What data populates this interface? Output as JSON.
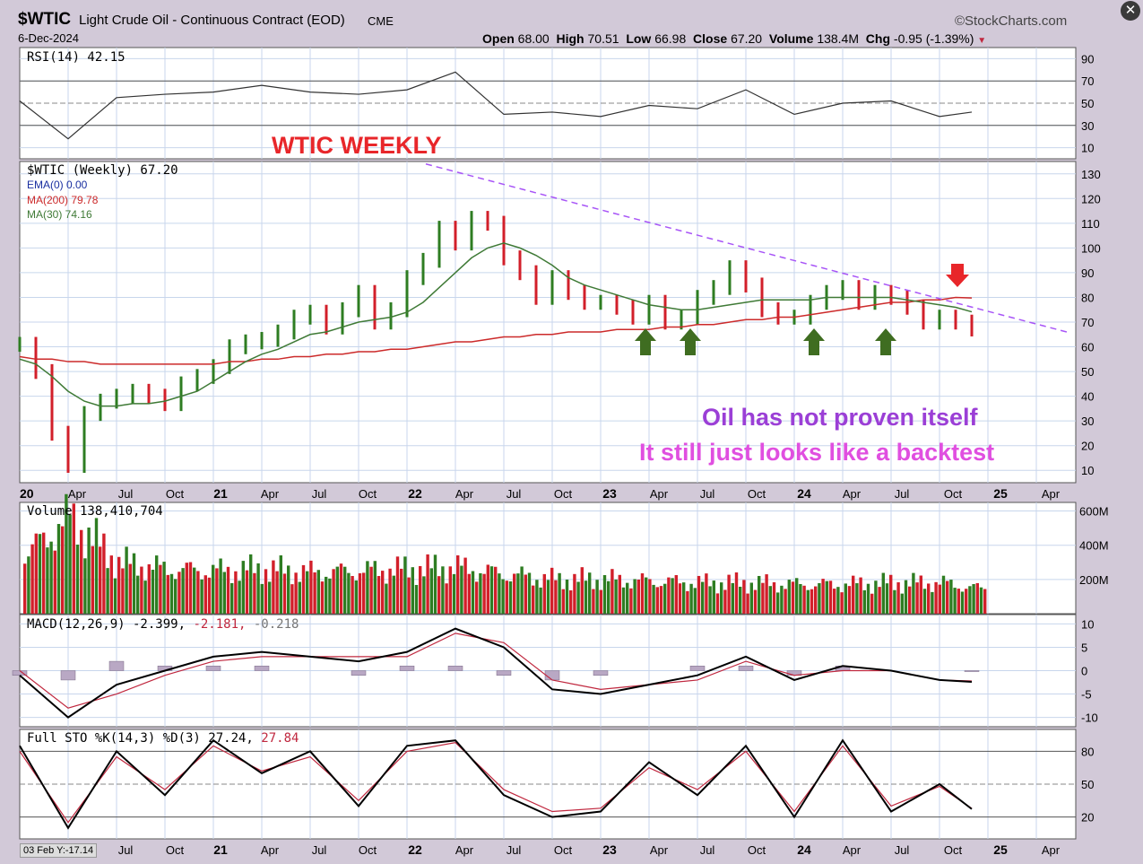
{
  "header": {
    "symbol": "$WTIC",
    "name": "Light Crude Oil - Continuous Contract (EOD)",
    "exchange": "CME",
    "date": "6-Dec-2024",
    "brand": "©StockCharts.com",
    "open_label": "Open",
    "open": "68.00",
    "high_label": "High",
    "high": "70.51",
    "low_label": "Low",
    "low": "66.98",
    "close_label": "Close",
    "close": "67.20",
    "volume_label": "Volume",
    "volume": "138.4M",
    "chg_label": "Chg",
    "chg": "-0.95 (-1.39%)"
  },
  "status_text": "03 Feb Y:-17.14",
  "colors": {
    "up": "#2e7d22",
    "down": "#d21f2a",
    "ma200": "#cc2a2a",
    "ma30": "#3f7a36",
    "trend": "#a855f7",
    "annot_purple": "#9b3fd6",
    "annot_pink": "#e04fe0",
    "title_red": "#e8262a",
    "arrow_green": "#3f6d21",
    "arrow_red": "#e8262a"
  },
  "chart_data": [
    {
      "type": "line",
      "title": "RSI(14) 42.15",
      "yticks": [
        10,
        30,
        50,
        70,
        90
      ],
      "ylim": [
        0,
        100
      ],
      "x": [
        "2020-01",
        "2020-04",
        "2020-07",
        "2020-10",
        "2021-01",
        "2021-04",
        "2021-07",
        "2021-10",
        "2022-01",
        "2022-04",
        "2022-07",
        "2022-10",
        "2023-01",
        "2023-04",
        "2023-07",
        "2023-10",
        "2024-01",
        "2024-04",
        "2024-07",
        "2024-10",
        "2024-12"
      ],
      "series": [
        {
          "name": "RSI(14)",
          "values": [
            52,
            18,
            55,
            58,
            60,
            66,
            60,
            58,
            62,
            78,
            40,
            42,
            38,
            48,
            45,
            62,
            40,
            50,
            52,
            38,
            42
          ]
        }
      ]
    },
    {
      "type": "line",
      "title": "$WTIC (Weekly) 67.20",
      "annotation_title": "WTIC WEEKLY",
      "annotations": [
        "Oil has not proven itself",
        "It still just looks like a backtest"
      ],
      "legend": [
        "EMA(0) 0.00",
        "MA(200) 79.78",
        "MA(30) 74.16"
      ],
      "yticks": [
        10,
        20,
        30,
        40,
        50,
        60,
        70,
        80,
        90,
        100,
        110,
        120,
        130
      ],
      "ylim": [
        5,
        135
      ],
      "xticks": [
        "20",
        "Apr",
        "Jul",
        "Oct",
        "21",
        "Apr",
        "Jul",
        "Oct",
        "22",
        "Apr",
        "Jul",
        "Oct",
        "23",
        "Apr",
        "Jul",
        "Oct",
        "24",
        "Apr",
        "Jul",
        "Oct",
        "25",
        "Apr"
      ],
      "x": [
        "2020-01",
        "2020-02",
        "2020-03",
        "2020-04",
        "2020-05",
        "2020-06",
        "2020-07",
        "2020-08",
        "2020-09",
        "2020-10",
        "2020-11",
        "2020-12",
        "2021-01",
        "2021-02",
        "2021-03",
        "2021-04",
        "2021-05",
        "2021-06",
        "2021-07",
        "2021-08",
        "2021-09",
        "2021-10",
        "2021-11",
        "2021-12",
        "2022-01",
        "2022-02",
        "2022-03",
        "2022-04",
        "2022-05",
        "2022-06",
        "2022-07",
        "2022-08",
        "2022-09",
        "2022-10",
        "2022-11",
        "2022-12",
        "2023-01",
        "2023-02",
        "2023-03",
        "2023-04",
        "2023-05",
        "2023-06",
        "2023-07",
        "2023-08",
        "2023-09",
        "2023-10",
        "2023-11",
        "2023-12",
        "2024-01",
        "2024-02",
        "2024-03",
        "2024-04",
        "2024-05",
        "2024-06",
        "2024-07",
        "2024-08",
        "2024-09",
        "2024-10",
        "2024-11",
        "2024-12"
      ],
      "series": [
        {
          "name": "$WTIC",
          "values": [
            61,
            50,
            25,
            12,
            33,
            38,
            40,
            42,
            40,
            37,
            45,
            48,
            52,
            60,
            62,
            63,
            66,
            72,
            74,
            68,
            75,
            82,
            70,
            75,
            88,
            95,
            108,
            102,
            112,
            110,
            96,
            90,
            80,
            88,
            82,
            78,
            78,
            76,
            72,
            78,
            70,
            72,
            80,
            84,
            92,
            85,
            75,
            72,
            72,
            78,
            82,
            84,
            78,
            82,
            80,
            76,
            70,
            72,
            70,
            67.2
          ]
        },
        {
          "name": "MA(200)",
          "values": [
            56,
            55,
            55,
            54,
            54,
            53,
            53,
            53,
            53,
            53,
            53,
            53,
            53,
            54,
            54,
            55,
            55,
            56,
            56,
            57,
            57,
            58,
            58,
            59,
            59,
            60,
            61,
            62,
            62,
            63,
            64,
            64,
            65,
            65,
            66,
            66,
            66,
            67,
            67,
            67,
            68,
            68,
            69,
            69,
            70,
            71,
            71,
            72,
            72,
            73,
            74,
            75,
            76,
            77,
            78,
            78,
            79,
            79,
            80,
            79.78
          ]
        },
        {
          "name": "MA(30)",
          "values": [
            55,
            53,
            48,
            42,
            38,
            36,
            36,
            37,
            37,
            38,
            40,
            42,
            46,
            50,
            54,
            57,
            59,
            62,
            65,
            66,
            68,
            70,
            71,
            72,
            74,
            78,
            84,
            90,
            96,
            100,
            102,
            100,
            97,
            93,
            88,
            85,
            83,
            81,
            79,
            77,
            76,
            75,
            75,
            76,
            77,
            78,
            79,
            79,
            79,
            79,
            80,
            80,
            80,
            80,
            80,
            79,
            78,
            77,
            76,
            74.16
          ]
        }
      ],
      "extra_labels": {
        "wtic_legend": "$WTIC (Weekly) 67.20"
      }
    },
    {
      "type": "bar",
      "title": "Volume 138,410,704",
      "yticks_labels": [
        "200M",
        "400M",
        "600M"
      ],
      "yticks": [
        200,
        400,
        600
      ],
      "ylim": [
        0,
        650
      ],
      "x": [
        "2020-01",
        "2020-04",
        "2020-07",
        "2020-10",
        "2021-01",
        "2021-04",
        "2021-07",
        "2021-10",
        "2022-01",
        "2022-04",
        "2022-07",
        "2022-10",
        "2023-01",
        "2023-04",
        "2023-07",
        "2023-10",
        "2024-01",
        "2024-04",
        "2024-07",
        "2024-10",
        "2024-12"
      ],
      "values": [
        320,
        560,
        300,
        260,
        250,
        260,
        240,
        250,
        260,
        270,
        230,
        200,
        200,
        190,
        180,
        180,
        170,
        170,
        180,
        180,
        138
      ]
    },
    {
      "type": "line",
      "title": "MACD(12,26,9) -2.399, -2.181, -0.218",
      "legend": [
        "MACD(12,26,9) -2.399",
        "-2.181",
        "-0.218"
      ],
      "yticks": [
        -10,
        -5,
        0,
        5,
        10
      ],
      "ylim": [
        -12,
        12
      ],
      "x": [
        "2020-01",
        "2020-04",
        "2020-07",
        "2020-10",
        "2021-01",
        "2021-04",
        "2021-07",
        "2021-10",
        "2022-01",
        "2022-04",
        "2022-07",
        "2022-10",
        "2023-01",
        "2023-04",
        "2023-07",
        "2023-10",
        "2024-01",
        "2024-04",
        "2024-07",
        "2024-10",
        "2024-12"
      ],
      "series": [
        {
          "name": "MACD",
          "values": [
            -1,
            -10,
            -3,
            0,
            3,
            4,
            3,
            2,
            4,
            9,
            5,
            -4,
            -5,
            -3,
            -1,
            3,
            -2,
            1,
            0,
            -2,
            -2.4
          ]
        },
        {
          "name": "Signal",
          "values": [
            0,
            -8,
            -5,
            -1,
            2,
            3,
            3,
            3,
            3,
            8,
            6,
            -2,
            -4,
            -3,
            -2,
            2,
            -1,
            0,
            0,
            -2,
            -2.2
          ]
        }
      ],
      "histogram": [
        -1,
        -2,
        2,
        1,
        1,
        1,
        0,
        -1,
        1,
        1,
        -1,
        -2,
        -1,
        0,
        1,
        1,
        -1,
        1,
        0,
        0,
        -0.2
      ]
    },
    {
      "type": "line",
      "title": "Full STO %K(14,3) %D(3) 27.24, 27.84",
      "legend": [
        "Full STO %K(14,3) %D(3) 27.24",
        "27.84"
      ],
      "yticks": [
        20,
        50,
        80
      ],
      "ylim": [
        0,
        100
      ],
      "x": [
        "2020-01",
        "2020-04",
        "2020-07",
        "2020-10",
        "2021-01",
        "2021-04",
        "2021-07",
        "2021-10",
        "2022-01",
        "2022-04",
        "2022-07",
        "2022-10",
        "2023-01",
        "2023-04",
        "2023-07",
        "2023-10",
        "2024-01",
        "2024-04",
        "2024-07",
        "2024-10",
        "2024-12"
      ],
      "series": [
        {
          "name": "%K",
          "values": [
            85,
            10,
            80,
            40,
            90,
            60,
            80,
            30,
            85,
            90,
            40,
            20,
            25,
            70,
            40,
            85,
            20,
            90,
            25,
            50,
            27.24
          ]
        },
        {
          "name": "%D",
          "values": [
            80,
            15,
            75,
            45,
            85,
            62,
            75,
            35,
            80,
            88,
            45,
            25,
            28,
            65,
            45,
            80,
            25,
            85,
            30,
            48,
            27.84
          ]
        }
      ]
    }
  ],
  "xaxis_labels": [
    "20",
    "Apr",
    "Jul",
    "Oct",
    "21",
    "Apr",
    "Jul",
    "Oct",
    "22",
    "Apr",
    "Jul",
    "Oct",
    "23",
    "Apr",
    "Jul",
    "Oct",
    "24",
    "Apr",
    "Jul",
    "Oct",
    "25",
    "Apr"
  ],
  "xaxis_labels_bottom": [
    "Jul",
    "Oct",
    "21",
    "Apr",
    "Jul",
    "Oct",
    "22",
    "Apr",
    "Jul",
    "Oct",
    "23",
    "Apr",
    "Jul",
    "Oct",
    "24",
    "Apr",
    "Jul",
    "Oct",
    "25",
    "Apr"
  ]
}
